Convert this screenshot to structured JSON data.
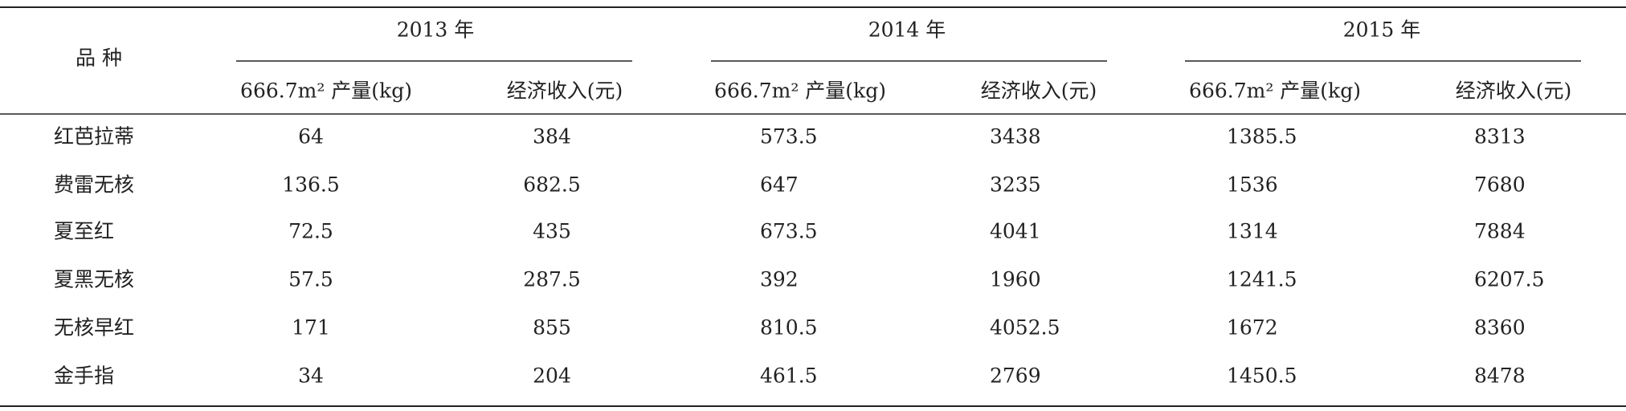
{
  "table": {
    "header": {
      "variety": "品 种",
      "years": [
        "2013 年",
        "2014 年",
        "2015 年"
      ],
      "subheaders": [
        "666.7m² 产量(kg)",
        "经济收入(元)",
        "666.7m² 产量(kg)",
        "经济收入(元)",
        "666.7m² 产量(kg)",
        "经济收入(元)"
      ]
    },
    "rows": [
      [
        "红芭拉蒂",
        "64",
        "384",
        "573.5",
        "3438",
        "1385.5",
        "8313"
      ],
      [
        "费雷无核",
        "136.5",
        "682.5",
        "647",
        "3235",
        "1536",
        "7680"
      ],
      [
        "夏至红",
        "72.5",
        "435",
        "673.5",
        "4041",
        "1314",
        "7884"
      ],
      [
        "夏黑无核",
        "57.5",
        "287.5",
        "392",
        "1960",
        "1241.5",
        "6207.5"
      ],
      [
        "无核早红",
        "171",
        "855",
        "810.5",
        "4052.5",
        "1672",
        "8360"
      ],
      [
        "金手指",
        "34",
        "204",
        "461.5",
        "2769",
        "1450.5",
        "8478"
      ]
    ]
  }
}
